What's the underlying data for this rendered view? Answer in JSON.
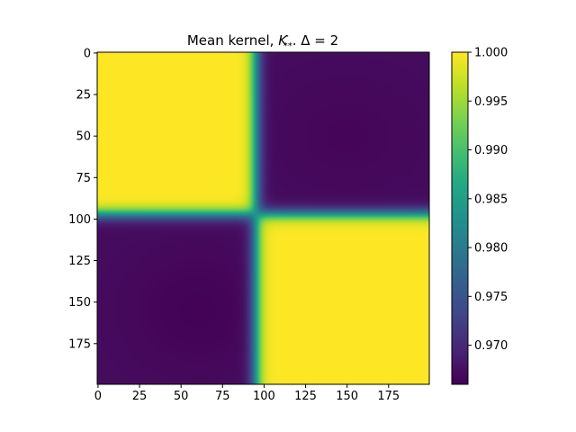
{
  "chart_data": {
    "type": "heatmap",
    "title": "Mean kernel, $K_{**}^{-}$. $\\Delta = 2$",
    "title_parts": {
      "prefix": "Mean kernel, ",
      "symbol": "K",
      "subscript": "**",
      "superscript": "-",
      "suffix": ". Δ = 2"
    },
    "xlabel": "",
    "ylabel": "",
    "matrix_size": 200,
    "x_range": [
      0,
      199
    ],
    "y_range": [
      0,
      199
    ],
    "y_inverted": true,
    "x_ticks": [
      0,
      25,
      50,
      75,
      100,
      125,
      150,
      175
    ],
    "x_tick_labels": [
      "0",
      "25",
      "50",
      "75",
      "100",
      "125",
      "150",
      "175"
    ],
    "y_ticks": [
      0,
      25,
      50,
      75,
      100,
      125,
      150,
      175
    ],
    "y_tick_labels": [
      "0",
      "25",
      "50",
      "75",
      "100",
      "125",
      "150",
      "175"
    ],
    "colormap": "viridis",
    "color_range": [
      0.966,
      1.0
    ],
    "colorbar_ticks": [
      0.97,
      0.975,
      0.98,
      0.985,
      0.99,
      0.995,
      1.0
    ],
    "colorbar_tick_labels": [
      "0.970",
      "0.975",
      "0.980",
      "0.985",
      "0.990",
      "0.995",
      "1.000"
    ],
    "structure": {
      "description_values": "block structure: value ~1.0 when i and j are on the same side of the change point, ~0.967 otherwise",
      "change_point_row": 97,
      "change_point_col": 95,
      "same_side_value": 1.0,
      "cross_side_value": 0.967,
      "top_right_min": 0.9665,
      "bottom_left_min": 0.9662
    }
  }
}
